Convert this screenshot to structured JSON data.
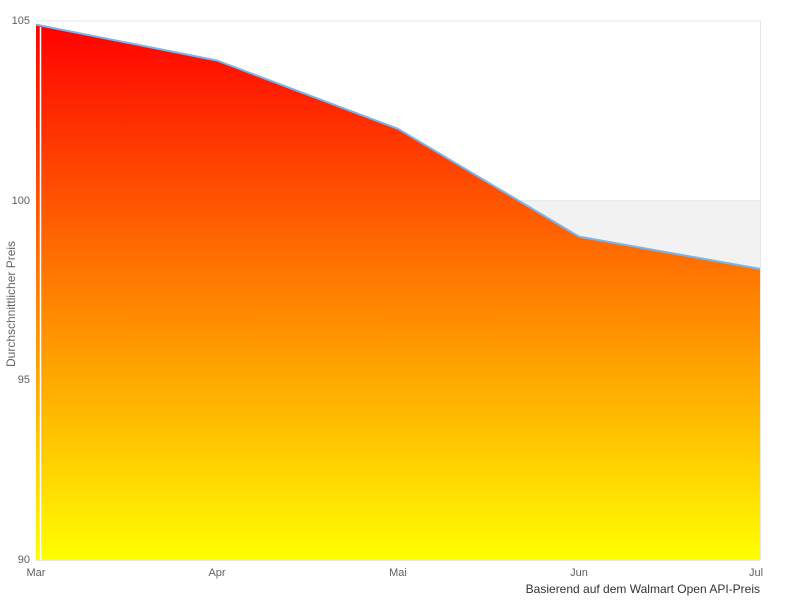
{
  "chart_data": {
    "type": "area",
    "title": "",
    "categories": [
      "Mar",
      "Apr",
      "Mai",
      "Jun",
      "Jul"
    ],
    "values": [
      104.9,
      103.9,
      102,
      99,
      98.1
    ],
    "series_name": "Durchschnittlicher Preis",
    "xlabel": "",
    "ylabel": "Durchschnittlicher Preis",
    "ylim": [
      90,
      105
    ],
    "yticks": [
      90,
      95,
      100,
      105
    ],
    "shaded_band": {
      "from": 95,
      "to": 100
    },
    "grid": "horizontal gridlines, alternating band 95-100 shaded",
    "legend": "none",
    "caption": "Basierend auf dem Walmart Open API-Preis",
    "colors": {
      "line": "#7cb5ec",
      "fill_top": "#ff0000",
      "fill_bottom": "#ffff00",
      "band": "#f2f2f2",
      "gridline": "#e6e6e6",
      "axis_line": "#e6e6e6",
      "tick_label": "#606060",
      "axis_title": "#666666",
      "caption": "#333333"
    }
  }
}
